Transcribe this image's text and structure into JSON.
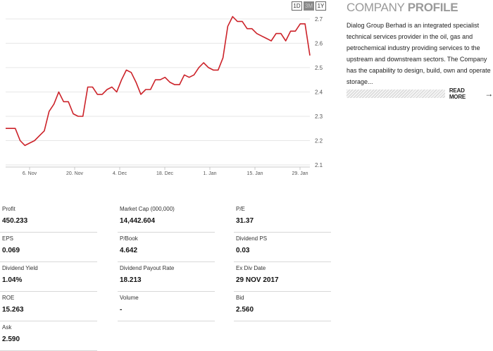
{
  "period_buttons": [
    "1D",
    "3M",
    "1Y"
  ],
  "active_period": "3M",
  "profile": {
    "title_light": "COMPANY ",
    "title_bold": "PROFILE",
    "description": "Dialog Group Berhad is an integrated specialist technical services provider in the oil, gas and petrochemical industry providing services to the upstream and downstream sectors. The Company has the capability to design, build, own and operate storage...",
    "read_more": "READ MORE",
    "arrow_icon": "arrow-right-icon"
  },
  "stats": [
    {
      "label": "Profit",
      "value": "450.233"
    },
    {
      "label": "Market Cap   (000,000)",
      "value": "14,442.604"
    },
    {
      "label": "P/E",
      "value": "31.37"
    },
    {
      "label": "EPS",
      "value": "0.069"
    },
    {
      "label": "P/Book",
      "value": "4.642"
    },
    {
      "label": "Dividend PS",
      "value": "0.03"
    },
    {
      "label": "Dividend Yield",
      "value": "1.04%"
    },
    {
      "label": "Dividend Payout Rate",
      "value": "18.213"
    },
    {
      "label": "Ex Div Date",
      "value": "29 NOV 2017"
    },
    {
      "label": "ROE",
      "value": "15.263"
    },
    {
      "label": "Volume",
      "value": "-"
    },
    {
      "label": "Bid",
      "value": "2.560"
    },
    {
      "label": "Ask",
      "value": "2.590"
    }
  ],
  "colors": {
    "line": "#cc2229",
    "grid": "#e6e6e6",
    "axis": "#c8c8c8"
  },
  "chart_data": {
    "type": "line",
    "x_tick_labels": [
      "6. Nov",
      "20. Nov",
      "4. Dec",
      "18. Dec",
      "1. Jan",
      "15. Jan",
      "29. Jan"
    ],
    "y_tick_labels": [
      "2.1",
      "2.2",
      "2.3",
      "2.4",
      "2.5",
      "2.6",
      "2.7"
    ],
    "ylim": [
      2.1,
      2.72
    ],
    "grid": true,
    "series": [
      {
        "values": [
          2.25,
          2.25,
          2.25,
          2.2,
          2.18,
          2.19,
          2.2,
          2.22,
          2.24,
          2.32,
          2.35,
          2.4,
          2.36,
          2.36,
          2.31,
          2.3,
          2.3,
          2.42,
          2.42,
          2.39,
          2.39,
          2.41,
          2.42,
          2.4,
          2.45,
          2.49,
          2.48,
          2.44,
          2.39,
          2.41,
          2.41,
          2.45,
          2.45,
          2.46,
          2.44,
          2.43,
          2.43,
          2.47,
          2.46,
          2.47,
          2.5,
          2.52,
          2.5,
          2.49,
          2.49,
          2.54,
          2.67,
          2.71,
          2.69,
          2.69,
          2.66,
          2.66,
          2.64,
          2.63,
          2.62,
          2.61,
          2.64,
          2.64,
          2.61,
          2.65,
          2.65,
          2.68,
          2.68,
          2.55
        ]
      }
    ]
  }
}
